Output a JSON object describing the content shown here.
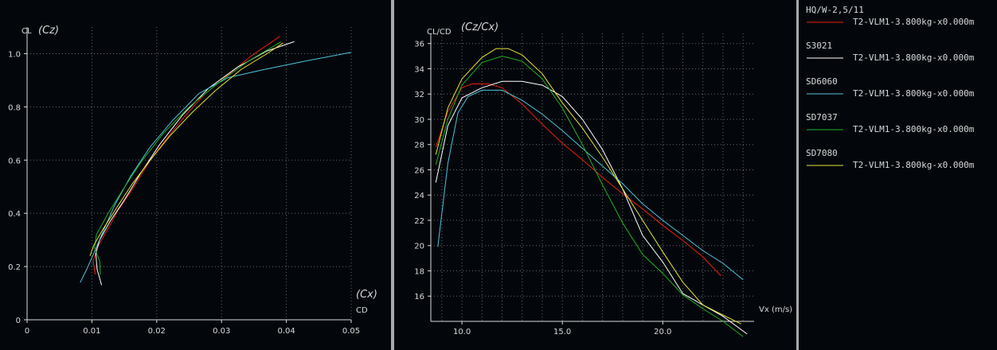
{
  "colors": {
    "background": "#03070c",
    "axis": "#d8d8d8",
    "grid": "#6a6a6a",
    "text": "#d8d8d8",
    "series": {
      "HQ/W-2,5/11": "#e8200c",
      "S3021": "#ffffff",
      "SD6060": "#4fc3d9",
      "SD7037": "#22b022",
      "SD7080": "#e6e62e"
    }
  },
  "chart_data": [
    {
      "type": "line",
      "xlabel": "CD",
      "xlabel_alt": "(Cx)",
      "ylabel": "CL",
      "ylabel_alt": "(Cz)",
      "xlim": [
        0,
        0.05
      ],
      "ylim": [
        0,
        1.1
      ],
      "xticks": [
        "0",
        "0.01",
        "0.02",
        "0.03",
        "0.04",
        "0.05"
      ],
      "yticks": [
        "0",
        "0.2",
        "0.4",
        "0.6",
        "0.8",
        "1.0"
      ],
      "grid": true,
      "series": [
        {
          "name": "HQ/W-2,5/11",
          "color": "#e8200c",
          "points": [
            [
              0.0105,
              0.17
            ],
            [
              0.0102,
              0.22
            ],
            [
              0.0108,
              0.27
            ],
            [
              0.0122,
              0.33
            ],
            [
              0.014,
              0.41
            ],
            [
              0.0165,
              0.5
            ],
            [
              0.019,
              0.6
            ],
            [
              0.0215,
              0.68
            ],
            [
              0.0245,
              0.77
            ],
            [
              0.0275,
              0.85
            ],
            [
              0.031,
              0.92
            ],
            [
              0.0345,
              0.99
            ],
            [
              0.039,
              1.065
            ]
          ]
        },
        {
          "name": "S3021",
          "color": "#ffffff",
          "points": [
            [
              0.0115,
              0.13
            ],
            [
              0.0108,
              0.19
            ],
            [
              0.0106,
              0.25
            ],
            [
              0.0112,
              0.3
            ],
            [
              0.0128,
              0.37
            ],
            [
              0.015,
              0.45
            ],
            [
              0.0175,
              0.55
            ],
            [
              0.0205,
              0.66
            ],
            [
              0.024,
              0.77
            ],
            [
              0.028,
              0.87
            ],
            [
              0.0325,
              0.95
            ],
            [
              0.037,
              1.01
            ],
            [
              0.0412,
              1.045
            ]
          ]
        },
        {
          "name": "SD6060",
          "color": "#4fc3d9",
          "points": [
            [
              0.0082,
              0.14
            ],
            [
              0.0092,
              0.19
            ],
            [
              0.0103,
              0.25
            ],
            [
              0.0117,
              0.33
            ],
            [
              0.0135,
              0.43
            ],
            [
              0.016,
              0.54
            ],
            [
              0.019,
              0.65
            ],
            [
              0.0225,
              0.75
            ],
            [
              0.0265,
              0.85
            ],
            [
              0.031,
              0.91
            ],
            [
              0.0365,
              0.94
            ],
            [
              0.0425,
              0.97
            ],
            [
              0.05,
              1.005
            ]
          ]
        },
        {
          "name": "SD7037",
          "color": "#22b022",
          "points": [
            [
              0.0113,
              0.17
            ],
            [
              0.0112,
              0.22
            ],
            [
              0.0104,
              0.27
            ],
            [
              0.0107,
              0.32
            ],
            [
              0.0125,
              0.4
            ],
            [
              0.0148,
              0.49
            ],
            [
              0.0175,
              0.59
            ],
            [
              0.021,
              0.7
            ],
            [
              0.025,
              0.8
            ],
            [
              0.0295,
              0.89
            ],
            [
              0.034,
              0.97
            ],
            [
              0.0392,
              1.045
            ]
          ]
        },
        {
          "name": "SD7080",
          "color": "#e6e62e",
          "points": [
            [
              0.0097,
              0.24
            ],
            [
              0.0103,
              0.28
            ],
            [
              0.0117,
              0.34
            ],
            [
              0.0138,
              0.42
            ],
            [
              0.0162,
              0.51
            ],
            [
              0.019,
              0.6
            ],
            [
              0.022,
              0.69
            ],
            [
              0.0255,
              0.78
            ],
            [
              0.029,
              0.86
            ],
            [
              0.033,
              0.94
            ],
            [
              0.037,
              1.0
            ],
            [
              0.0395,
              1.04
            ]
          ]
        }
      ]
    },
    {
      "type": "line",
      "xlabel": "Vx (m/s)",
      "ylabel": "CL/CD",
      "ylabel_alt": "(Cz/Cx)",
      "xlim": [
        8.45,
        24.55
      ],
      "ylim": [
        14.0,
        36.8
      ],
      "xticks": [
        10,
        15,
        20
      ],
      "xtick_labels": [
        "10.0",
        "15.0",
        "20.0"
      ],
      "yticks": [
        16,
        18,
        20,
        22,
        24,
        26,
        28,
        30,
        32,
        34,
        36
      ],
      "grid": true,
      "series": [
        {
          "name": "HQ/W-2,5/11",
          "color": "#e8200c",
          "points": [
            [
              8.7,
              27.8
            ],
            [
              9.3,
              30.6
            ],
            [
              10.0,
              32.5
            ],
            [
              10.5,
              32.8
            ],
            [
              11.3,
              32.8
            ],
            [
              12.0,
              32.5
            ],
            [
              13.0,
              31.2
            ],
            [
              14.0,
              29.6
            ],
            [
              15.0,
              28.1
            ],
            [
              16.0,
              26.8
            ],
            [
              17.0,
              25.4
            ],
            [
              18.0,
              24.1
            ],
            [
              19.0,
              22.9
            ],
            [
              20.0,
              21.6
            ],
            [
              21.0,
              20.4
            ],
            [
              22.0,
              19.1
            ],
            [
              22.9,
              17.6
            ]
          ]
        },
        {
          "name": "S3021",
          "color": "#ffffff",
          "points": [
            [
              8.7,
              25.0
            ],
            [
              9.3,
              29.5
            ],
            [
              10.0,
              31.7
            ],
            [
              11.0,
              32.5
            ],
            [
              12.0,
              33.0
            ],
            [
              13.0,
              33.0
            ],
            [
              14.0,
              32.7
            ],
            [
              15.0,
              31.8
            ],
            [
              16.0,
              30.0
            ],
            [
              17.0,
              27.6
            ],
            [
              18.0,
              24.5
            ],
            [
              19.0,
              20.8
            ],
            [
              20.0,
              18.7
            ],
            [
              21.0,
              16.2
            ],
            [
              22.0,
              15.3
            ],
            [
              23.0,
              14.4
            ],
            [
              24.2,
              13.0
            ]
          ]
        },
        {
          "name": "SD6060",
          "color": "#4fc3d9",
          "points": [
            [
              8.8,
              19.9
            ],
            [
              9.3,
              26.5
            ],
            [
              9.8,
              30.5
            ],
            [
              10.3,
              31.8
            ],
            [
              11.0,
              32.3
            ],
            [
              12.0,
              32.3
            ],
            [
              13.0,
              31.5
            ],
            [
              14.0,
              30.4
            ],
            [
              15.0,
              29.1
            ],
            [
              16.0,
              27.7
            ],
            [
              17.0,
              26.3
            ],
            [
              18.0,
              24.9
            ],
            [
              19.0,
              23.3
            ],
            [
              20.0,
              22.0
            ],
            [
              21.0,
              20.8
            ],
            [
              22.0,
              19.6
            ],
            [
              23.0,
              18.6
            ],
            [
              24.0,
              17.3
            ]
          ]
        },
        {
          "name": "SD7037",
          "color": "#22b022",
          "points": [
            [
              8.7,
              26.4
            ],
            [
              9.3,
              30.0
            ],
            [
              10.0,
              32.7
            ],
            [
              11.0,
              34.5
            ],
            [
              12.0,
              35.0
            ],
            [
              13.0,
              34.6
            ],
            [
              14.0,
              33.2
            ],
            [
              15.0,
              30.9
            ],
            [
              16.0,
              28.0
            ],
            [
              17.0,
              24.8
            ],
            [
              18.0,
              21.8
            ],
            [
              19.0,
              19.3
            ],
            [
              20.0,
              17.8
            ],
            [
              21.0,
              16.1
            ],
            [
              22.0,
              15.0
            ],
            [
              23.0,
              14.0
            ],
            [
              24.0,
              12.8
            ]
          ]
        },
        {
          "name": "SD7080",
          "color": "#e6e62e",
          "points": [
            [
              8.7,
              27.2
            ],
            [
              9.3,
              30.9
            ],
            [
              10.0,
              33.2
            ],
            [
              11.0,
              34.9
            ],
            [
              11.7,
              35.6
            ],
            [
              12.3,
              35.6
            ],
            [
              13.0,
              35.1
            ],
            [
              14.0,
              33.6
            ],
            [
              15.0,
              31.3
            ],
            [
              16.0,
              29.3
            ],
            [
              17.0,
              27.0
            ],
            [
              18.0,
              24.5
            ],
            [
              19.0,
              22.0
            ],
            [
              20.0,
              19.5
            ],
            [
              21.0,
              17.1
            ],
            [
              22.0,
              15.3
            ],
            [
              23.0,
              14.5
            ],
            [
              23.9,
              13.8
            ]
          ]
        }
      ]
    }
  ],
  "legend": {
    "entries": [
      {
        "name": "HQ/W-2,5/11",
        "label": "T2-VLM1-3.800kg-x0.000m",
        "color": "#e8200c"
      },
      {
        "name": "S3021",
        "label": "T2-VLM1-3.800kg-x0.000m",
        "color": "#ffffff"
      },
      {
        "name": "SD6060",
        "label": "T2-VLM1-3.800kg-x0.000m",
        "color": "#4fc3d9"
      },
      {
        "name": "SD7037",
        "label": "T2-VLM1-3.800kg-x0.000m",
        "color": "#22b022"
      },
      {
        "name": "SD7080",
        "label": "T2-VLM1-3.800kg-x0.000m",
        "color": "#e6e62e"
      }
    ]
  }
}
